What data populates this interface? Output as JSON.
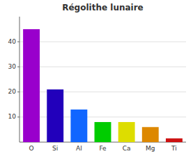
{
  "chart_data": {
    "type": "bar",
    "title": "Régolithe lunaire",
    "categories": [
      "O",
      "Si",
      "Al",
      "Fe",
      "Ca",
      "Mg",
      "Ti"
    ],
    "values": [
      45,
      21,
      13,
      8,
      8,
      6,
      1.5
    ],
    "colors": [
      "#9900cc",
      "#2200bb",
      "#1166ff",
      "#00cc00",
      "#dddd00",
      "#dd8800",
      "#cc1111"
    ],
    "ylim": [
      0,
      50
    ],
    "yticks": [
      10,
      20,
      30,
      40
    ],
    "grid": true
  }
}
